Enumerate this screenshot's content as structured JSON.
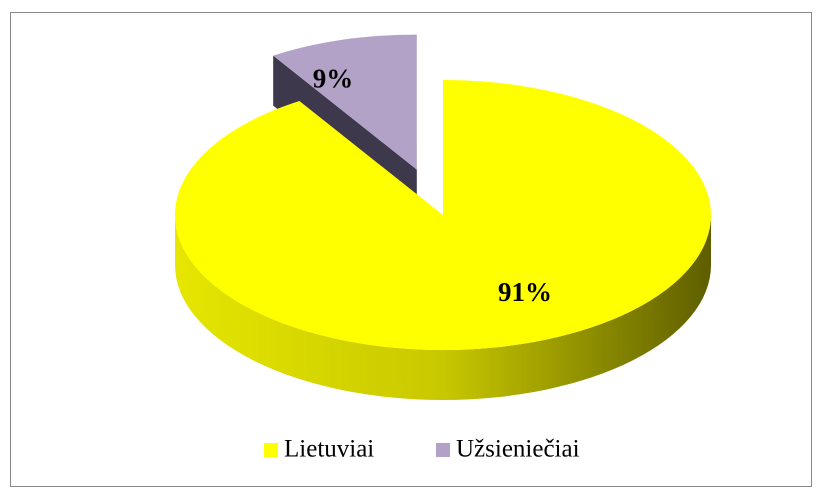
{
  "chart_data": {
    "type": "pie3d",
    "categories": [
      "Lietuviai",
      "Užsieniečiai"
    ],
    "values": [
      91,
      9
    ],
    "value_labels": [
      "91%",
      "9%"
    ],
    "colors": [
      "#ffff00",
      "#b3a2c7"
    ],
    "explode": [
      0,
      1
    ],
    "legend": "bottom"
  }
}
